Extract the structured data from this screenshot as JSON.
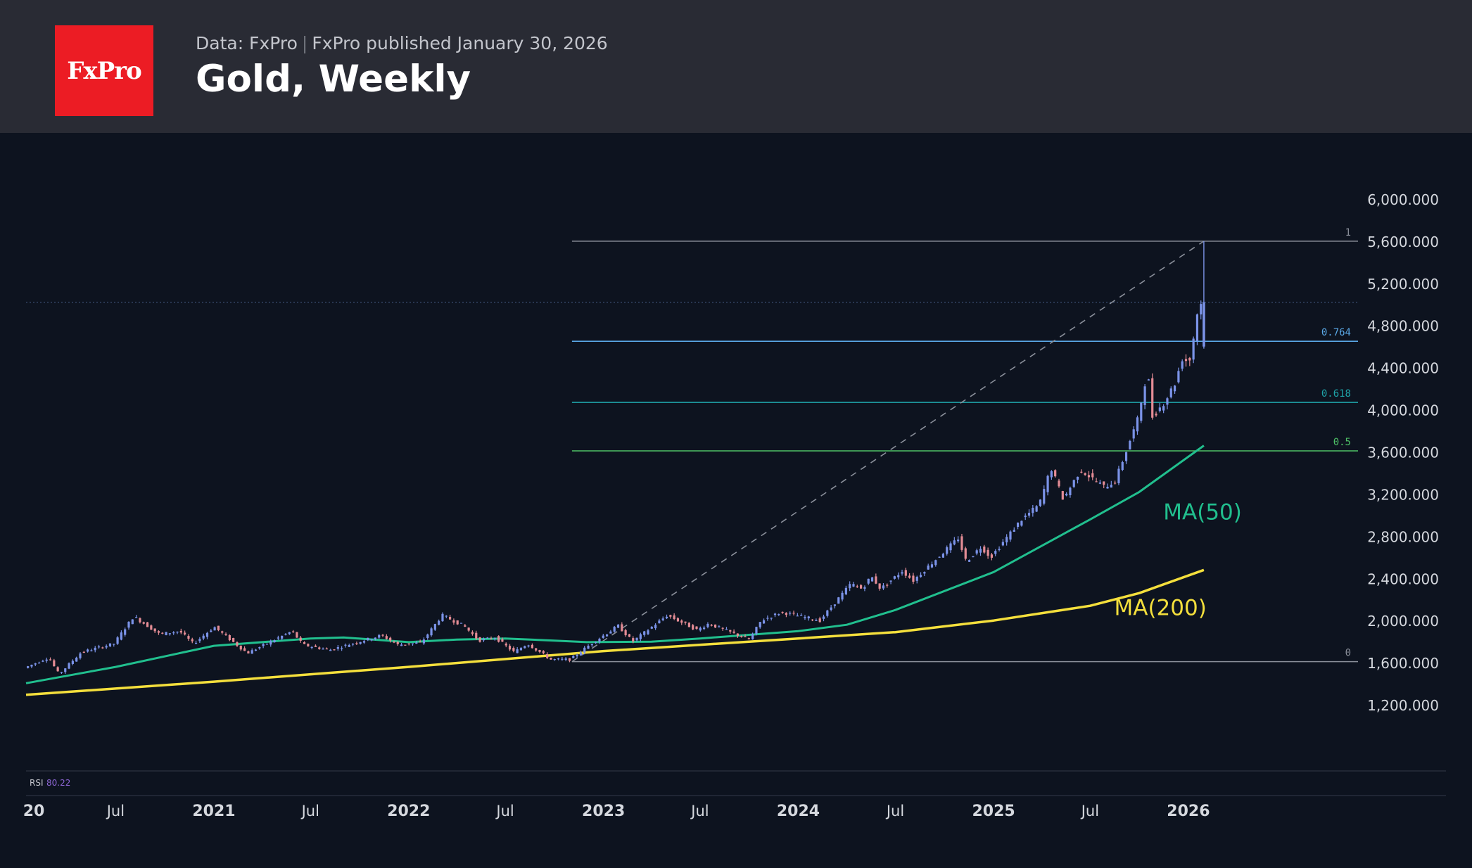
{
  "header": {
    "logo_text": "FxPro",
    "data_source": "Data: FxPro",
    "published": "FxPro published January 30, 2026",
    "title": "Gold, Weekly"
  },
  "colors": {
    "up": "#7b93e8",
    "down": "#e48c95",
    "ma50": "#21bf8e",
    "ma200": "#f4df3c",
    "fib_0764": "#5aa8e6",
    "fib_0618": "#1fa3a8",
    "fib_05": "#4ec267",
    "fib_edge": "#8a8f9a",
    "axis_text": "#d5d8de",
    "rsi_value": "#8e67d6"
  },
  "indicator": {
    "name": "RSI",
    "value": "80.22"
  },
  "chart_data": {
    "type": "candlestick",
    "title": "Gold, Weekly",
    "ylim": [
      1000,
      6300
    ],
    "y_ticks": [
      1200,
      1600,
      2000,
      2400,
      2800,
      3200,
      3600,
      4000,
      4400,
      4800,
      5200,
      5600,
      6000
    ],
    "y_tick_labels": [
      "1,200.000",
      "1,600.000",
      "2,000.000",
      "2,400.000",
      "2,800.000",
      "3,200.000",
      "3,600.000",
      "4,000.000",
      "4,400.000",
      "4,800.000",
      "5,200.000",
      "5,600.000",
      "6,000.000"
    ],
    "x_range": [
      "2020-01-15",
      "2026-12-31"
    ],
    "x_ticks": [
      {
        "date": "2020-01-01",
        "label": "20",
        "bold": true
      },
      {
        "date": "2020-07-01",
        "label": "Jul",
        "bold": false
      },
      {
        "date": "2021-01-01",
        "label": "2021",
        "bold": true
      },
      {
        "date": "2021-07-01",
        "label": "Jul",
        "bold": false
      },
      {
        "date": "2022-01-01",
        "label": "2022",
        "bold": true
      },
      {
        "date": "2022-07-01",
        "label": "Jul",
        "bold": false
      },
      {
        "date": "2023-01-01",
        "label": "2023",
        "bold": true
      },
      {
        "date": "2023-07-01",
        "label": "Jul",
        "bold": false
      },
      {
        "date": "2024-01-01",
        "label": "2024",
        "bold": true
      },
      {
        "date": "2024-07-01",
        "label": "Jul",
        "bold": false
      },
      {
        "date": "2025-01-01",
        "label": "2025",
        "bold": true
      },
      {
        "date": "2025-07-01",
        "label": "Jul",
        "bold": false
      },
      {
        "date": "2026-01-01",
        "label": "2026",
        "bold": true
      }
    ],
    "price_path": [
      [
        "2020-01-15",
        1550
      ],
      [
        "2020-03-01",
        1650
      ],
      [
        "2020-03-20",
        1490
      ],
      [
        "2020-05-01",
        1700
      ],
      [
        "2020-07-01",
        1780
      ],
      [
        "2020-08-07",
        2040
      ],
      [
        "2020-09-25",
        1870
      ],
      [
        "2020-11-01",
        1900
      ],
      [
        "2020-11-27",
        1780
      ],
      [
        "2021-01-05",
        1940
      ],
      [
        "2021-03-08",
        1690
      ],
      [
        "2021-05-31",
        1900
      ],
      [
        "2021-06-20",
        1770
      ],
      [
        "2021-08-09",
        1720
      ],
      [
        "2021-11-15",
        1860
      ],
      [
        "2021-12-15",
        1770
      ],
      [
        "2022-01-28",
        1790
      ],
      [
        "2022-03-08",
        2050
      ],
      [
        "2022-04-18",
        1950
      ],
      [
        "2022-05-16",
        1810
      ],
      [
        "2022-06-15",
        1840
      ],
      [
        "2022-07-21",
        1700
      ],
      [
        "2022-08-15",
        1780
      ],
      [
        "2022-09-28",
        1630
      ],
      [
        "2022-11-03",
        1630
      ],
      [
        "2022-12-15",
        1790
      ],
      [
        "2023-02-01",
        1950
      ],
      [
        "2023-02-28",
        1800
      ],
      [
        "2023-05-04",
        2050
      ],
      [
        "2023-06-29",
        1910
      ],
      [
        "2023-07-20",
        1970
      ],
      [
        "2023-10-05",
        1820
      ],
      [
        "2023-10-27",
        2000
      ],
      [
        "2023-12-04",
        2080
      ],
      [
        "2024-02-14",
        2000
      ],
      [
        "2024-04-12",
        2350
      ],
      [
        "2024-05-03",
        2300
      ],
      [
        "2024-05-20",
        2420
      ],
      [
        "2024-06-07",
        2300
      ],
      [
        "2024-07-17",
        2470
      ],
      [
        "2024-08-07",
        2380
      ],
      [
        "2024-10-30",
        2780
      ],
      [
        "2024-11-14",
        2560
      ],
      [
        "2024-12-12",
        2700
      ],
      [
        "2024-12-30",
        2600
      ],
      [
        "2025-02-24",
        2950
      ],
      [
        "2025-03-31",
        3100
      ],
      [
        "2025-04-22",
        3450
      ],
      [
        "2025-05-15",
        3150
      ],
      [
        "2025-06-16",
        3430
      ],
      [
        "2025-07-30",
        3270
      ],
      [
        "2025-08-20",
        3320
      ],
      [
        "2025-09-15",
        3680
      ],
      [
        "2025-10-01",
        3900
      ],
      [
        "2025-10-20",
        4380
      ],
      [
        "2025-10-28",
        3930
      ],
      [
        "2025-11-20",
        4070
      ],
      [
        "2025-12-10",
        4250
      ],
      [
        "2025-12-26",
        4520
      ],
      [
        "2026-01-05",
        4420
      ],
      [
        "2026-01-13",
        4650
      ],
      [
        "2026-01-22",
        4950
      ],
      [
        "2026-01-30",
        5020
      ]
    ],
    "last_candle": {
      "date": "2026-01-30",
      "open": 4600,
      "high": 5600,
      "low": 4580,
      "close": 5020
    },
    "last_price_line": 5020,
    "series": [
      {
        "name": "MA(50)",
        "points": [
          [
            "2020-01-15",
            1405
          ],
          [
            "2020-07-01",
            1560
          ],
          [
            "2021-01-01",
            1760
          ],
          [
            "2021-07-01",
            1830
          ],
          [
            "2021-09-01",
            1840
          ],
          [
            "2022-01-01",
            1795
          ],
          [
            "2022-04-01",
            1820
          ],
          [
            "2022-07-01",
            1830
          ],
          [
            "2022-10-01",
            1810
          ],
          [
            "2022-12-01",
            1795
          ],
          [
            "2023-04-01",
            1800
          ],
          [
            "2023-07-01",
            1830
          ],
          [
            "2024-01-01",
            1900
          ],
          [
            "2024-04-01",
            1960
          ],
          [
            "2024-07-01",
            2100
          ],
          [
            "2025-01-01",
            2460
          ],
          [
            "2025-07-01",
            2960
          ],
          [
            "2025-10-01",
            3220
          ],
          [
            "2026-01-30",
            3660
          ]
        ]
      },
      {
        "name": "MA(200)",
        "points": [
          [
            "2020-01-15",
            1295
          ],
          [
            "2021-01-01",
            1420
          ],
          [
            "2022-01-01",
            1560
          ],
          [
            "2023-01-01",
            1710
          ],
          [
            "2024-01-01",
            1830
          ],
          [
            "2024-07-01",
            1890
          ],
          [
            "2025-01-01",
            2000
          ],
          [
            "2025-07-01",
            2140
          ],
          [
            "2025-10-01",
            2260
          ],
          [
            "2026-01-30",
            2480
          ]
        ]
      }
    ],
    "fibonacci": {
      "start": "2022-11-03",
      "end": "2026-12-31",
      "levels": [
        {
          "label": "1",
          "price": 5600
        },
        {
          "label": "0.764",
          "price": 4650
        },
        {
          "label": "0.618",
          "price": 4070
        },
        {
          "label": "0.5",
          "price": 3610
        },
        {
          "label": "0",
          "price": 1610
        }
      ],
      "trend_line": [
        [
          "2022-11-03",
          1610
        ],
        [
          "2026-01-30",
          5600
        ]
      ]
    },
    "annotations": [
      {
        "text": "MA(50)",
        "date": "2025-11-15",
        "price": 2960
      },
      {
        "text": "MA(200)",
        "date": "2025-08-15",
        "price": 2050
      }
    ]
  }
}
